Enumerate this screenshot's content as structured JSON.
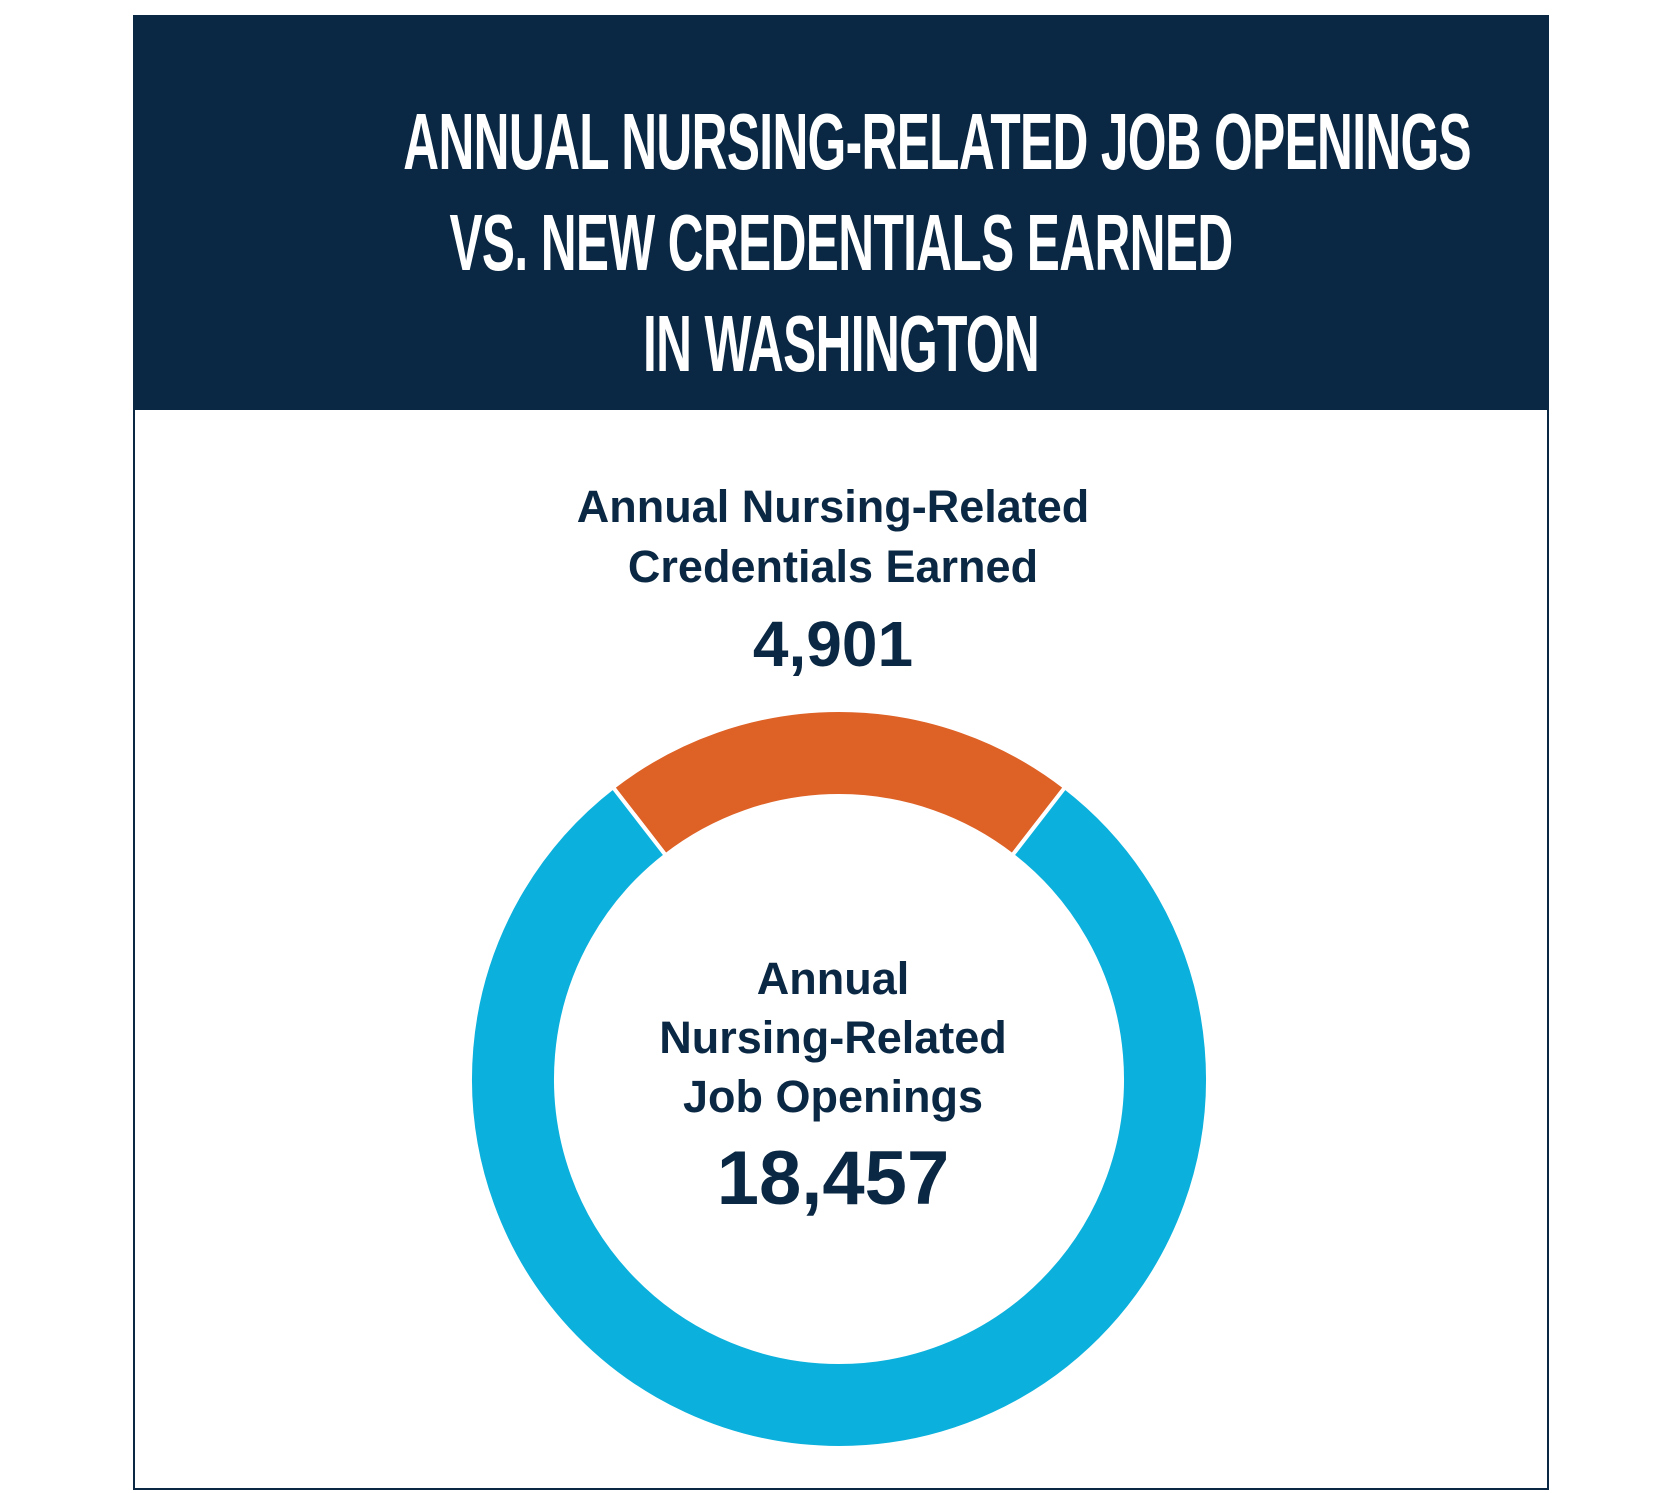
{
  "title_lines": [
    "ANNUAL NURSING-RELATED JOB OPENINGS",
    "VS. NEW CREDENTIALS EARNED",
    "IN WASHINGTON"
  ],
  "colors": {
    "header": "#0a2843",
    "text": "#0a2843",
    "credentials": "#de6126",
    "job_openings": "#0bb0dc"
  },
  "chart_data": {
    "type": "pie",
    "variant": "donut",
    "title": "ANNUAL NURSING-RELATED JOB OPENINGS VS. NEW CREDENTIALS EARNED IN WASHINGTON",
    "slices": [
      {
        "label_lines": [
          "Annual Nursing-Related",
          "Credentials Earned"
        ],
        "value": 4901,
        "value_label": "4,901",
        "color": "#de6126"
      },
      {
        "label_lines": [
          "Annual",
          "Nursing-Related",
          "Job Openings"
        ],
        "value": 18457,
        "value_label": "18,457",
        "color": "#0bb0dc"
      }
    ]
  }
}
